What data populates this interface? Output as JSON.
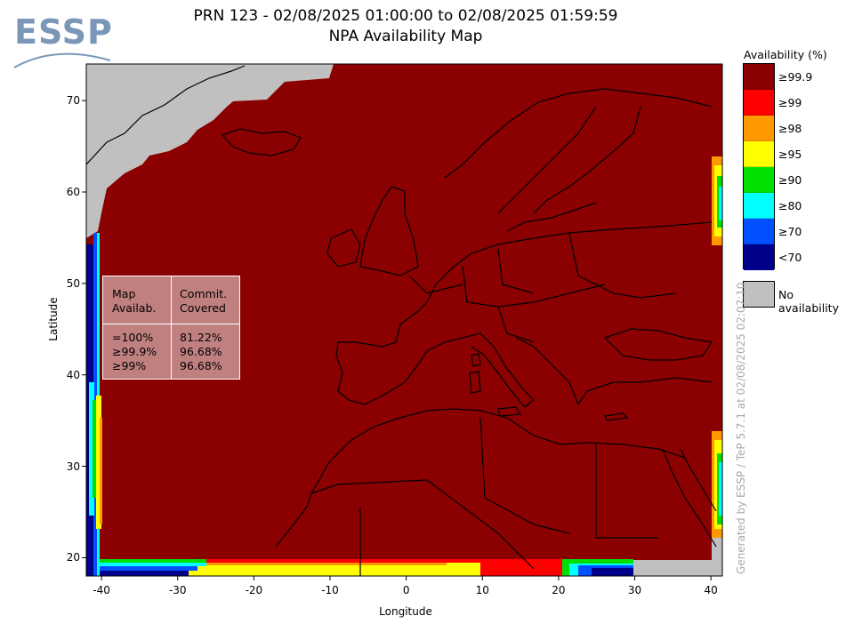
{
  "logo": {
    "text": "ESSP"
  },
  "title": {
    "line1": "PRN 123 - 02/08/2025 01:00:00 to 02/08/2025 01:59:59",
    "line2": "NPA Availability Map"
  },
  "axes": {
    "x_label": "Longitude",
    "y_label": "Latitude",
    "x_ticks": [
      "-40",
      "-30",
      "-20",
      "-10",
      "0",
      "10",
      "20",
      "30",
      "40"
    ],
    "y_ticks": [
      "70",
      "60",
      "50",
      "40",
      "30",
      "20"
    ],
    "lon_range": [
      -42,
      41.5
    ],
    "lat_range": [
      18,
      74
    ]
  },
  "stats_box": {
    "header_col1": [
      "Map",
      "Availab."
    ],
    "header_col2": [
      "Commit.",
      "Covered"
    ],
    "rows": [
      {
        "threshold": "=100%",
        "covered": "81.22%"
      },
      {
        "threshold": "≥99.9%",
        "covered": "96.68%"
      },
      {
        "threshold": "≥99%",
        "covered": "96.68%"
      }
    ]
  },
  "legend": {
    "title": "Availability (%)",
    "items": [
      {
        "label": "≥99.9",
        "color": "#8b0000"
      },
      {
        "label": "≥99",
        "color": "#ff0000"
      },
      {
        "label": "≥98",
        "color": "#ff9900"
      },
      {
        "label": "≥95",
        "color": "#ffff00"
      },
      {
        "label": "≥90",
        "color": "#00e000"
      },
      {
        "label": "≥80",
        "color": "#00ffff"
      },
      {
        "label": "≥70",
        "color": "#0050ff"
      },
      {
        "label": "<70",
        "color": "#00008b"
      }
    ],
    "no_availability": {
      "label": "No availability",
      "color": "#c0c0c0"
    }
  },
  "credit": "Generated by ESSP / TeP 5.7.1 at 02/08/2025 02:07:10",
  "colors": {
    "map_background": "#8b0000",
    "no_data": "#c0c0c0",
    "border_line": "#000000"
  }
}
